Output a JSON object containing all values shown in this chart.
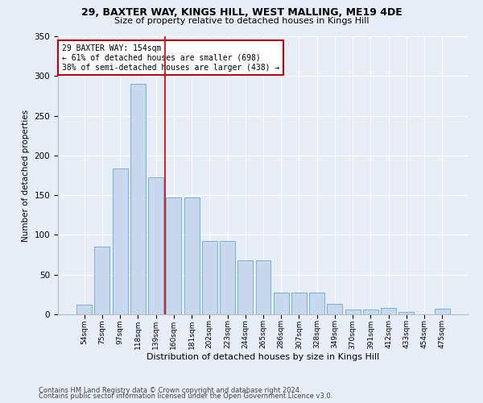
{
  "title1": "29, BAXTER WAY, KINGS HILL, WEST MALLING, ME19 4DE",
  "title2": "Size of property relative to detached houses in Kings Hill",
  "xlabel": "Distribution of detached houses by size in Kings Hill",
  "ylabel": "Number of detached properties",
  "categories": [
    "54sqm",
    "75sqm",
    "97sqm",
    "118sqm",
    "139sqm",
    "160sqm",
    "181sqm",
    "202sqm",
    "223sqm",
    "244sqm",
    "265sqm",
    "286sqm",
    "307sqm",
    "328sqm",
    "349sqm",
    "370sqm",
    "391sqm",
    "412sqm",
    "433sqm",
    "454sqm",
    "475sqm"
  ],
  "values": [
    12,
    85,
    184,
    290,
    172,
    147,
    147,
    92,
    92,
    68,
    68,
    27,
    27,
    27,
    13,
    6,
    6,
    8,
    3,
    0,
    7
  ],
  "bar_color": "#c8d9ef",
  "bar_edge_color": "#7aafd4",
  "vline_x": 4.5,
  "vline_color": "#cc0000",
  "annotation_text": "29 BAXTER WAY: 154sqm\n← 61% of detached houses are smaller (698)\n38% of semi-detached houses are larger (438) →",
  "annotation_box_color": "#ffffff",
  "annotation_box_edge": "#cc0000",
  "footer1": "Contains HM Land Registry data © Crown copyright and database right 2024.",
  "footer2": "Contains public sector information licensed under the Open Government Licence v3.0.",
  "background_color": "#e8eef8",
  "ylim": [
    0,
    350
  ],
  "yticks": [
    0,
    50,
    100,
    150,
    200,
    250,
    300,
    350
  ]
}
